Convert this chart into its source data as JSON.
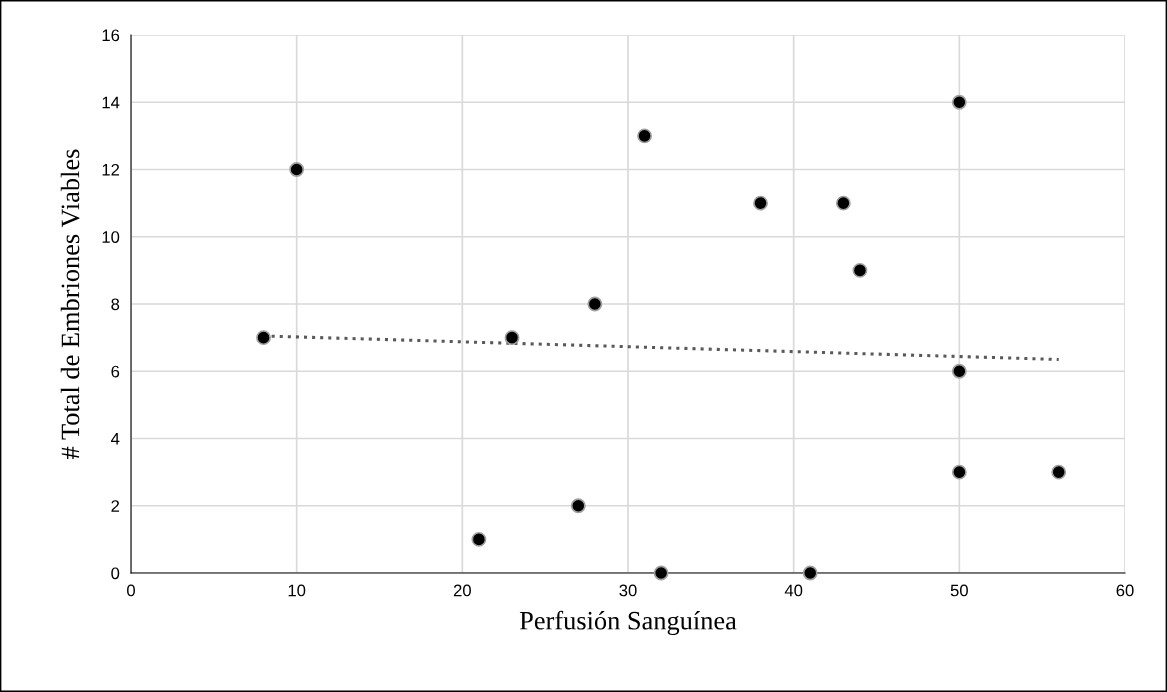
{
  "chart_data": {
    "type": "scatter",
    "xlabel": "Perfusión Sanguínea",
    "ylabel": "# Total de Embriones Viables",
    "xlim": [
      0,
      60
    ],
    "xticks": [
      0,
      10,
      20,
      30,
      40,
      50,
      60
    ],
    "ylim": [
      0,
      16
    ],
    "yticks": [
      0,
      2,
      4,
      6,
      8,
      10,
      12,
      14,
      16
    ],
    "grid": true,
    "legend": false,
    "series": [
      {
        "marker": "circle",
        "color": "#000000",
        "x": [
          8,
          10,
          21,
          23,
          27,
          28,
          31,
          32,
          38,
          41,
          43,
          44,
          50,
          50,
          50,
          56
        ],
        "values": [
          7,
          12,
          1,
          7,
          2,
          8,
          13,
          0,
          11,
          0,
          11,
          9,
          14,
          6,
          3,
          3
        ]
      },
      {
        "type": "line",
        "color": "#595959",
        "line_style": "dotted",
        "x": [
          8,
          56
        ],
        "values": [
          7.05,
          6.35
        ]
      }
    ]
  }
}
